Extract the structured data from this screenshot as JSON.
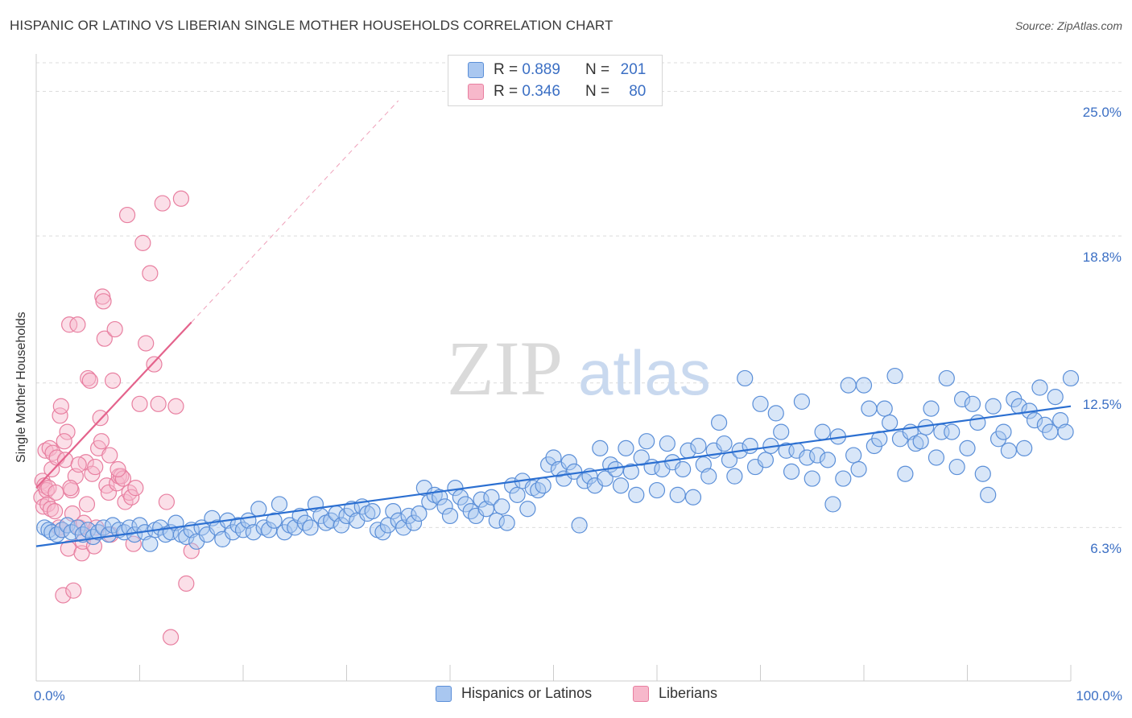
{
  "title": "HISPANIC OR LATINO VS LIBERIAN SINGLE MOTHER HOUSEHOLDS CORRELATION CHART",
  "source": "Source: ZipAtlas.com",
  "watermark": {
    "zip": "ZIP",
    "atlas": "atlas"
  },
  "legend": {
    "rows": [
      {
        "r_label": "R =",
        "r_value": "0.889",
        "n_label": "N =",
        "n_value": "201"
      },
      {
        "r_label": "R =",
        "r_value": "0.346",
        "n_label": "N =",
        "n_value": "80"
      }
    ]
  },
  "colors": {
    "blue_fill": "#a9c7f0",
    "blue_stroke": "#5b8fd8",
    "blue_line": "#2b6fd1",
    "pink_fill": "#f7b8cb",
    "pink_stroke": "#e87fa0",
    "pink_line": "#e4638c",
    "grid": "#dcdcdc",
    "tick_text": "#3b6fc4"
  },
  "chart_data": {
    "type": "scatter",
    "ylabel": "Single Mother Households",
    "xlim": [
      0,
      100
    ],
    "ylim": [
      0,
      26.5
    ],
    "x_tick_labels": [
      {
        "value": 0,
        "label": "0.0%"
      },
      {
        "value": 100,
        "label": "100.0%"
      }
    ],
    "y_ticks": [
      {
        "value": 6.3,
        "label": "6.3%"
      },
      {
        "value": 12.5,
        "label": "12.5%"
      },
      {
        "value": 18.8,
        "label": "18.8%"
      },
      {
        "value": 25.0,
        "label": "25.0%"
      }
    ],
    "series": [
      {
        "name": "Hispanics or Latinos",
        "color": "blue",
        "trend": {
          "x0": 0,
          "y0": 5.5,
          "x1": 100,
          "y1": 11.5
        },
        "points": [
          [
            0.8,
            6.3
          ],
          [
            1.2,
            6.2
          ],
          [
            1.5,
            6.1
          ],
          [
            2,
            6.0
          ],
          [
            2.5,
            6.2
          ],
          [
            3,
            6.4
          ],
          [
            3.4,
            6.1
          ],
          [
            4,
            6.3
          ],
          [
            4.5,
            6.0
          ],
          [
            5,
            6.2
          ],
          [
            5.5,
            5.9
          ],
          [
            6,
            6.1
          ],
          [
            6.5,
            6.3
          ],
          [
            7,
            6.0
          ],
          [
            7.4,
            6.4
          ],
          [
            8,
            6.2
          ],
          [
            8.5,
            6.1
          ],
          [
            9,
            6.3
          ],
          [
            9.5,
            6.0
          ],
          [
            10,
            6.4
          ],
          [
            10.5,
            6.1
          ],
          [
            11,
            5.6
          ],
          [
            11.5,
            6.2
          ],
          [
            12,
            6.3
          ],
          [
            12.5,
            6.0
          ],
          [
            13,
            6.1
          ],
          [
            13.5,
            6.5
          ],
          [
            14,
            6.0
          ],
          [
            14.5,
            5.9
          ],
          [
            15,
            6.2
          ],
          [
            15.5,
            5.7
          ],
          [
            16,
            6.3
          ],
          [
            16.5,
            6.0
          ],
          [
            17,
            6.7
          ],
          [
            17.5,
            6.3
          ],
          [
            18,
            5.8
          ],
          [
            18.5,
            6.6
          ],
          [
            19,
            6.1
          ],
          [
            19.5,
            6.4
          ],
          [
            20,
            6.2
          ],
          [
            20.5,
            6.6
          ],
          [
            21,
            6.1
          ],
          [
            21.5,
            7.1
          ],
          [
            22,
            6.3
          ],
          [
            22.5,
            6.2
          ],
          [
            23,
            6.6
          ],
          [
            23.5,
            7.3
          ],
          [
            24,
            6.1
          ],
          [
            24.5,
            6.4
          ],
          [
            25,
            6.3
          ],
          [
            25.5,
            6.8
          ],
          [
            26,
            6.5
          ],
          [
            26.5,
            6.3
          ],
          [
            27,
            7.3
          ],
          [
            27.5,
            6.8
          ],
          [
            28,
            6.5
          ],
          [
            28.5,
            6.6
          ],
          [
            29,
            6.9
          ],
          [
            29.5,
            6.4
          ],
          [
            30,
            6.8
          ],
          [
            30.5,
            7.1
          ],
          [
            31,
            6.6
          ],
          [
            31.5,
            7.2
          ],
          [
            32,
            6.9
          ],
          [
            32.5,
            7.0
          ],
          [
            33,
            6.2
          ],
          [
            33.5,
            6.1
          ],
          [
            34,
            6.4
          ],
          [
            34.5,
            7.0
          ],
          [
            35,
            6.6
          ],
          [
            35.5,
            6.3
          ],
          [
            36,
            6.8
          ],
          [
            36.5,
            6.5
          ],
          [
            37,
            6.9
          ],
          [
            37.5,
            8.0
          ],
          [
            38,
            7.4
          ],
          [
            38.5,
            7.7
          ],
          [
            39,
            7.6
          ],
          [
            39.5,
            7.2
          ],
          [
            40,
            6.8
          ],
          [
            40.5,
            8.0
          ],
          [
            41,
            7.6
          ],
          [
            41.5,
            7.3
          ],
          [
            42,
            7.0
          ],
          [
            42.5,
            6.8
          ],
          [
            43,
            7.5
          ],
          [
            43.5,
            7.1
          ],
          [
            44,
            7.6
          ],
          [
            44.5,
            6.6
          ],
          [
            45,
            7.2
          ],
          [
            45.5,
            6.5
          ],
          [
            46,
            8.1
          ],
          [
            46.5,
            7.7
          ],
          [
            47,
            8.3
          ],
          [
            47.5,
            7.1
          ],
          [
            48,
            8.0
          ],
          [
            48.5,
            7.9
          ],
          [
            49,
            8.1
          ],
          [
            49.5,
            9.0
          ],
          [
            50,
            9.3
          ],
          [
            50.5,
            8.8
          ],
          [
            51,
            8.4
          ],
          [
            51.5,
            9.1
          ],
          [
            52,
            8.7
          ],
          [
            52.5,
            6.4
          ],
          [
            53,
            8.3
          ],
          [
            53.5,
            8.5
          ],
          [
            54,
            8.1
          ],
          [
            54.5,
            9.7
          ],
          [
            55,
            8.4
          ],
          [
            55.5,
            9.0
          ],
          [
            56,
            8.8
          ],
          [
            56.5,
            8.1
          ],
          [
            57,
            9.7
          ],
          [
            57.5,
            8.7
          ],
          [
            58,
            7.7
          ],
          [
            58.5,
            9.3
          ],
          [
            59,
            10.0
          ],
          [
            59.5,
            8.9
          ],
          [
            60,
            7.9
          ],
          [
            60.5,
            8.8
          ],
          [
            61,
            9.9
          ],
          [
            61.5,
            9.1
          ],
          [
            62,
            7.7
          ],
          [
            62.5,
            8.8
          ],
          [
            63,
            9.6
          ],
          [
            63.5,
            7.6
          ],
          [
            64,
            9.8
          ],
          [
            64.5,
            9.0
          ],
          [
            65,
            8.5
          ],
          [
            65.5,
            9.6
          ],
          [
            66,
            10.8
          ],
          [
            66.5,
            9.9
          ],
          [
            67,
            9.2
          ],
          [
            67.5,
            8.5
          ],
          [
            68,
            9.6
          ],
          [
            68.5,
            12.7
          ],
          [
            69,
            9.8
          ],
          [
            69.5,
            8.9
          ],
          [
            70,
            11.6
          ],
          [
            70.5,
            9.2
          ],
          [
            71,
            9.8
          ],
          [
            71.5,
            11.2
          ],
          [
            72,
            10.4
          ],
          [
            72.5,
            9.6
          ],
          [
            73,
            8.7
          ],
          [
            73.5,
            9.6
          ],
          [
            74,
            11.7
          ],
          [
            74.5,
            9.3
          ],
          [
            75,
            8.4
          ],
          [
            75.5,
            9.4
          ],
          [
            76,
            10.4
          ],
          [
            76.5,
            9.2
          ],
          [
            77,
            7.3
          ],
          [
            77.5,
            10.2
          ],
          [
            78,
            8.4
          ],
          [
            78.5,
            12.4
          ],
          [
            79,
            9.4
          ],
          [
            79.5,
            8.8
          ],
          [
            80,
            12.4
          ],
          [
            80.5,
            11.4
          ],
          [
            81,
            9.8
          ],
          [
            81.5,
            10.1
          ],
          [
            82,
            11.4
          ],
          [
            82.5,
            10.8
          ],
          [
            83,
            12.8
          ],
          [
            83.5,
            10.1
          ],
          [
            84,
            8.6
          ],
          [
            84.5,
            10.4
          ],
          [
            85,
            9.9
          ],
          [
            85.5,
            10.0
          ],
          [
            86,
            10.6
          ],
          [
            86.5,
            11.4
          ],
          [
            87,
            9.3
          ],
          [
            87.5,
            10.4
          ],
          [
            88,
            12.7
          ],
          [
            88.5,
            10.4
          ],
          [
            89,
            8.9
          ],
          [
            89.5,
            11.8
          ],
          [
            90,
            9.7
          ],
          [
            90.5,
            11.6
          ],
          [
            91,
            10.8
          ],
          [
            91.5,
            8.6
          ],
          [
            92,
            7.7
          ],
          [
            92.5,
            11.5
          ],
          [
            93,
            10.1
          ],
          [
            93.5,
            10.4
          ],
          [
            94,
            9.6
          ],
          [
            94.5,
            11.8
          ],
          [
            95,
            11.5
          ],
          [
            95.5,
            9.7
          ],
          [
            96,
            11.3
          ],
          [
            96.5,
            10.9
          ],
          [
            97,
            12.3
          ],
          [
            97.5,
            10.7
          ],
          [
            98,
            10.4
          ],
          [
            98.5,
            11.9
          ],
          [
            99,
            10.9
          ],
          [
            99.5,
            10.4
          ],
          [
            100,
            12.7
          ]
        ]
      },
      {
        "name": "Liberians",
        "color": "pink",
        "trend": {
          "x0": 0,
          "y0": 8.0,
          "x1": 15,
          "y1": 15.1
        },
        "trend_extension": {
          "x1": 35,
          "y1": 24.6
        },
        "points": [
          [
            0.5,
            7.6
          ],
          [
            0.6,
            8.3
          ],
          [
            0.7,
            7.2
          ],
          [
            0.8,
            8.1
          ],
          [
            0.9,
            9.6
          ],
          [
            1.0,
            7.9
          ],
          [
            1.1,
            7.3
          ],
          [
            1.2,
            8.0
          ],
          [
            1.3,
            9.7
          ],
          [
            1.4,
            7.1
          ],
          [
            1.5,
            8.8
          ],
          [
            1.6,
            9.5
          ],
          [
            1.8,
            7.0
          ],
          [
            2.0,
            9.3
          ],
          [
            2.2,
            6.3
          ],
          [
            2.3,
            11.1
          ],
          [
            2.4,
            11.5
          ],
          [
            2.5,
            6.2
          ],
          [
            2.6,
            3.4
          ],
          [
            2.8,
            9.2
          ],
          [
            3.0,
            10.4
          ],
          [
            3.1,
            5.4
          ],
          [
            3.2,
            15.0
          ],
          [
            3.4,
            7.9
          ],
          [
            3.5,
            6.9
          ],
          [
            3.6,
            3.6
          ],
          [
            3.8,
            8.5
          ],
          [
            4.0,
            15.0
          ],
          [
            4.2,
            6.3
          ],
          [
            4.4,
            5.2
          ],
          [
            4.5,
            5.7
          ],
          [
            4.6,
            6.5
          ],
          [
            4.8,
            9.1
          ],
          [
            5.0,
            12.7
          ],
          [
            5.2,
            12.6
          ],
          [
            5.4,
            8.6
          ],
          [
            5.6,
            5.5
          ],
          [
            5.8,
            6.3
          ],
          [
            6.0,
            9.7
          ],
          [
            6.2,
            11.0
          ],
          [
            6.4,
            16.2
          ],
          [
            6.5,
            16.0
          ],
          [
            6.6,
            14.4
          ],
          [
            6.8,
            8.1
          ],
          [
            7.0,
            7.8
          ],
          [
            7.2,
            6.0
          ],
          [
            7.4,
            12.6
          ],
          [
            7.6,
            14.8
          ],
          [
            7.8,
            8.2
          ],
          [
            8.0,
            8.5
          ],
          [
            8.2,
            8.5
          ],
          [
            8.4,
            8.4
          ],
          [
            8.6,
            7.4
          ],
          [
            8.8,
            19.7
          ],
          [
            9.0,
            7.8
          ],
          [
            9.2,
            7.6
          ],
          [
            9.4,
            5.6
          ],
          [
            9.6,
            8.0
          ],
          [
            10.0,
            11.6
          ],
          [
            10.3,
            18.5
          ],
          [
            10.6,
            14.2
          ],
          [
            11.0,
            17.2
          ],
          [
            11.4,
            13.3
          ],
          [
            11.8,
            11.6
          ],
          [
            12.2,
            20.2
          ],
          [
            12.6,
            7.4
          ],
          [
            13.0,
            1.6
          ],
          [
            13.5,
            11.5
          ],
          [
            14.0,
            20.4
          ],
          [
            14.5,
            3.9
          ],
          [
            15.0,
            5.3
          ],
          [
            1.9,
            7.8
          ],
          [
            2.7,
            10.0
          ],
          [
            3.3,
            8.0
          ],
          [
            4.1,
            9.0
          ],
          [
            4.9,
            7.3
          ],
          [
            5.7,
            8.9
          ],
          [
            6.3,
            10.0
          ],
          [
            7.1,
            9.4
          ],
          [
            7.9,
            8.8
          ]
        ]
      }
    ]
  },
  "bottom_legend": [
    {
      "label": "Hispanics or Latinos",
      "color": "blue"
    },
    {
      "label": "Liberians",
      "color": "pink"
    }
  ]
}
